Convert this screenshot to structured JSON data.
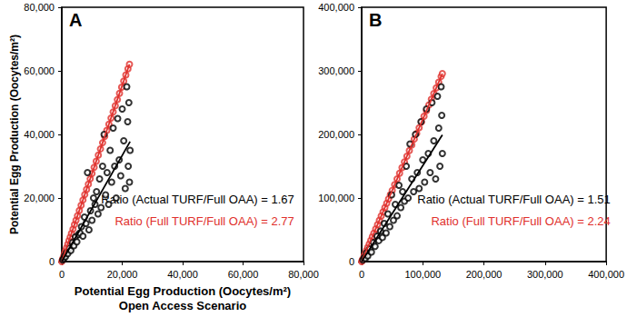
{
  "chart_data": [
    {
      "type": "scatter",
      "label": "A",
      "x_label": "Potential Egg Production (Oocytes/m²)\nOpen Access Scenario",
      "y_label": "Potential Egg Production (Oocytes/m²)",
      "xlim": [
        0,
        80000
      ],
      "xticks": [
        0,
        {
          "value": 20000,
          "label": "20,000"
        },
        {
          "value": 40000,
          "label": "40,000"
        },
        {
          "value": 60000,
          "label": "60,000"
        },
        {
          "value": 80000,
          "label": "80,000"
        }
      ],
      "ylim": [
        0,
        80000
      ],
      "yticks": [
        0,
        {
          "value": 20000,
          "label": "20,000"
        },
        {
          "value": 40000,
          "label": "40,000"
        },
        {
          "value": 60000,
          "label": "60,000"
        },
        {
          "value": 80000,
          "label": "80,000"
        }
      ],
      "grid": false,
      "annotations": [
        {
          "text": "Ratio (Actual TURF/Full OAA) = 1.67",
          "color": "#000000"
        },
        {
          "text": "Ratio (Full TURF/Full OAA) = 2.77",
          "color": "#e0302c"
        }
      ],
      "series": [
        {
          "type": "scatter",
          "marker": "open_circle",
          "color": "#e0302c",
          "x": [
            0,
            200,
            400,
            700,
            1000,
            1300,
            1600,
            2000,
            2400,
            2800,
            3200,
            3700,
            4200,
            4700,
            5200,
            5800,
            6400,
            7000,
            7600,
            8200,
            8800,
            9400,
            10000,
            10700,
            11400,
            12100,
            12800,
            13500,
            14200,
            14900,
            15600,
            16300,
            17000,
            17700,
            18400,
            19100,
            19800,
            20500,
            21200,
            21900,
            22400
          ],
          "values": [
            0,
            554,
            1108,
            1939,
            2770,
            3601,
            4432,
            5540,
            6648,
            7756,
            8864,
            10249,
            11634,
            13019,
            14404,
            16066,
            17728,
            19390,
            21052,
            22714,
            24376,
            26038,
            27700,
            29639,
            31578,
            33517,
            35456,
            37395,
            39334,
            41273,
            43212,
            45151,
            47090,
            49029,
            50968,
            52907,
            54846,
            56785,
            58724,
            60663,
            62048
          ]
        },
        {
          "type": "scatter",
          "marker": "open_circle",
          "color": "#000000",
          "x": [
            300,
            600,
            900,
            1200,
            1500,
            2000,
            2500,
            3000,
            3500,
            4000,
            4500,
            5000,
            5500,
            6000,
            6500,
            7000,
            7500,
            8000,
            8500,
            9000,
            9500,
            10000,
            10500,
            11000,
            11500,
            12000,
            12500,
            13000,
            13500,
            14000,
            14500,
            15000,
            15500,
            16000,
            16500,
            17000,
            17500,
            18000,
            18500,
            19000,
            19500,
            20000,
            20500,
            21000,
            21500,
            21800,
            22000,
            22200,
            22400,
            22600
          ],
          "values": [
            500,
            900,
            1800,
            1500,
            2800,
            2500,
            4200,
            3500,
            6000,
            5000,
            7800,
            6200,
            8500,
            9000,
            11000,
            8000,
            14000,
            12000,
            28000,
            10000,
            16000,
            13000,
            20000,
            18000,
            22000,
            15000,
            26000,
            17000,
            30000,
            40000,
            21000,
            28000,
            18000,
            35000,
            25000,
            42000,
            30000,
            20000,
            45000,
            32000,
            27000,
            48000,
            38000,
            23000,
            55000,
            44000,
            30000,
            50000,
            25000,
            35000
          ]
        },
        {
          "type": "line",
          "line_style": "solid",
          "color": "#e0302c",
          "x": [
            0,
            22400
          ],
          "values": [
            0,
            62048
          ]
        },
        {
          "type": "line",
          "line_style": "solid",
          "color": "#000000",
          "x": [
            0,
            22600
          ],
          "values": [
            0,
            37742
          ]
        }
      ]
    },
    {
      "type": "scatter",
      "label": "B",
      "xlim": [
        0,
        400000
      ],
      "xticks": [
        0,
        {
          "value": 100000,
          "label": "100,000"
        },
        {
          "value": 200000,
          "label": "200,000"
        },
        {
          "value": 300000,
          "label": "300,000"
        },
        {
          "value": 400000,
          "label": "400,000"
        }
      ],
      "ylim": [
        0,
        400000
      ],
      "yticks": [
        0,
        {
          "value": 100000,
          "label": "100,000"
        },
        {
          "value": 200000,
          "label": "200,000"
        },
        {
          "value": 300000,
          "label": "300,000"
        },
        {
          "value": 400000,
          "label": "400,000"
        }
      ],
      "grid": false,
      "annotations": [
        {
          "text": "Ratio (Actual TURF/Full OAA) = 1.51",
          "color": "#000000"
        },
        {
          "text": "Ratio (Full TURF/Full OAA) = 2.24",
          "color": "#e0302c"
        }
      ],
      "series": [
        {
          "type": "scatter",
          "marker": "open_circle",
          "color": "#e0302c",
          "x": [
            0,
            1000,
            2000,
            4000,
            6000,
            8000,
            10000,
            12500,
            15000,
            17500,
            20000,
            23000,
            26000,
            29000,
            32000,
            35000,
            38000,
            41000,
            44000,
            47000,
            50000,
            54000,
            58000,
            62000,
            66000,
            70000,
            74000,
            78000,
            82000,
            86000,
            90000,
            94000,
            98000,
            102000,
            106000,
            110000,
            114000,
            118000,
            122000,
            126000,
            130000,
            132000
          ],
          "values": [
            0,
            2240,
            4480,
            8960,
            13440,
            17920,
            22400,
            28000,
            33600,
            39200,
            44800,
            51520,
            58240,
            64960,
            71680,
            78400,
            85120,
            91840,
            98560,
            105280,
            112000,
            120960,
            129920,
            138880,
            147840,
            156800,
            165760,
            174720,
            183680,
            192640,
            201600,
            210560,
            219520,
            228480,
            237440,
            246400,
            255360,
            264320,
            273280,
            282240,
            291200,
            295680
          ]
        },
        {
          "type": "scatter",
          "marker": "open_circle",
          "color": "#000000",
          "x": [
            2000,
            4000,
            6000,
            8000,
            10000,
            13000,
            16000,
            19000,
            22000,
            25000,
            28000,
            31000,
            34000,
            37000,
            40000,
            43000,
            46000,
            49000,
            52000,
            55000,
            58000,
            61000,
            64000,
            67000,
            70000,
            73000,
            76000,
            79000,
            82000,
            85000,
            88000,
            91000,
            94000,
            97000,
            100000,
            103000,
            106000,
            109000,
            112000,
            115000,
            118000,
            121000,
            124000,
            126000,
            128000,
            130000,
            131000,
            132000
          ],
          "values": [
            2500,
            6000,
            5000,
            14000,
            9000,
            20000,
            15000,
            30000,
            24000,
            40000,
            33000,
            48000,
            38000,
            60000,
            45000,
            75000,
            55000,
            105000,
            65000,
            90000,
            72000,
            120000,
            85000,
            110000,
            95000,
            150000,
            100000,
            185000,
            130000,
            110000,
            200000,
            140000,
            115000,
            220000,
            160000,
            125000,
            240000,
            170000,
            140000,
            250000,
            190000,
            130000,
            260000,
            210000,
            150000,
            275000,
            230000,
            170000
          ]
        },
        {
          "type": "line",
          "line_style": "solid",
          "color": "#e0302c",
          "x": [
            0,
            132000
          ],
          "values": [
            0,
            295680
          ]
        },
        {
          "type": "line",
          "line_style": "solid",
          "color": "#000000",
          "x": [
            0,
            132000
          ],
          "values": [
            0,
            199320
          ]
        }
      ]
    }
  ]
}
